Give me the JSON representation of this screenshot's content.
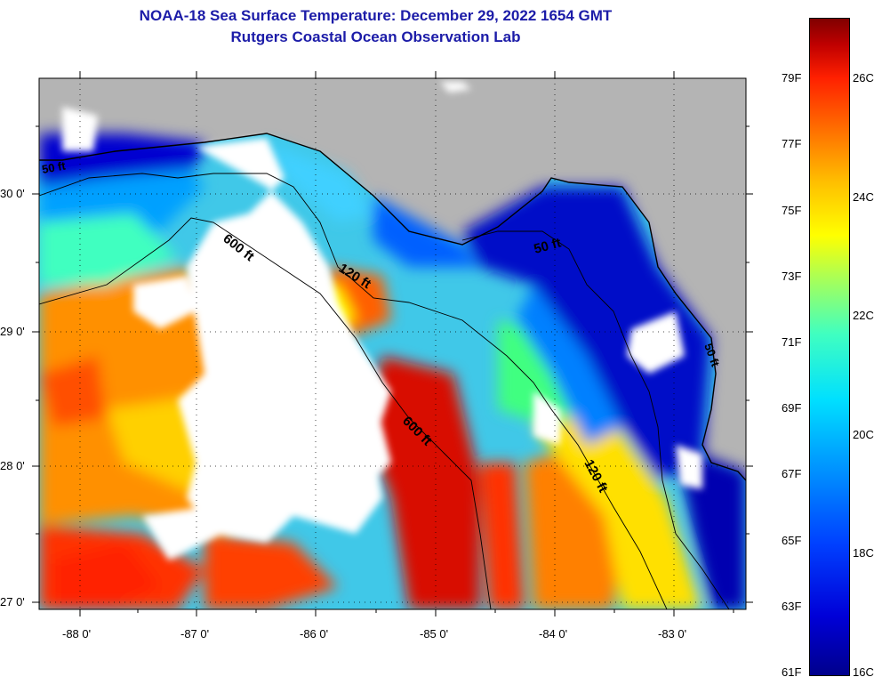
{
  "title": "NOAA-18 Sea Surface Temperature:  December 29, 2022 1654 GMT",
  "subtitle": "Rutgers Coastal Ocean Observation Lab",
  "map": {
    "lat_labels": [
      "30 0'",
      "29 0'",
      "28 0'",
      "27 0'"
    ],
    "lon_labels": [
      "-88 0'",
      "-87 0'",
      "-86 0'",
      "-85 0'",
      "-84 0'",
      "-83 0'"
    ],
    "contour_labels": [
      "600 ft",
      "120 ft",
      "50 ft",
      "600 ft",
      "120 ft",
      "50 ft",
      "50 ft"
    ],
    "colors": {
      "land": "#b4b4b4",
      "cloud": "#ffffff",
      "cold": "#0000c8",
      "warm": "#ff2000"
    }
  },
  "colorbar": {
    "fahrenheit": [
      "79F",
      "77F",
      "75F",
      "73F",
      "71F",
      "69F",
      "67F",
      "65F",
      "63F",
      "61F"
    ],
    "celsius": [
      "26C",
      "24C",
      "22C",
      "20C",
      "18C",
      "16C"
    ]
  }
}
